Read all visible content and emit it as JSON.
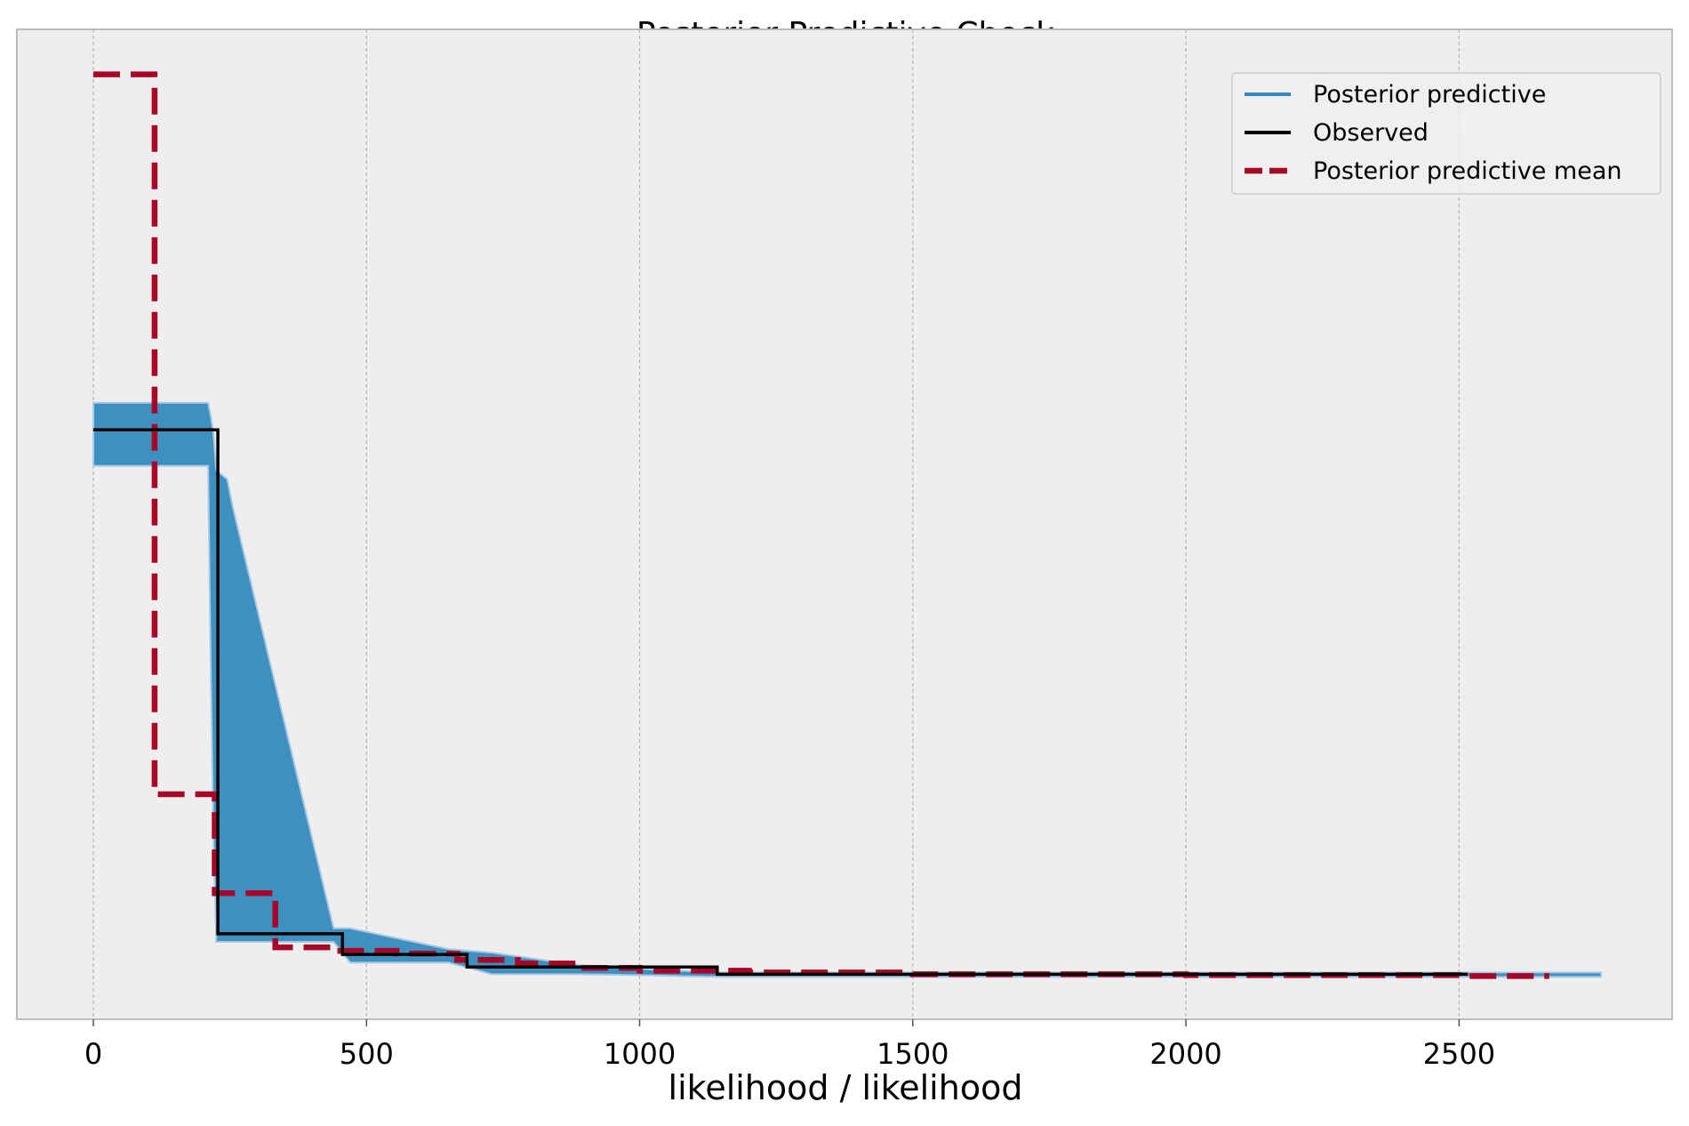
{
  "chart_data": {
    "type": "line",
    "title": "Posterior Predictive Check",
    "xlabel": "likelihood / likelihood",
    "ylabel": "",
    "xlim": [
      -140,
      2890
    ],
    "ylim": [
      -0.05,
      1.05
    ],
    "xticks": [
      0,
      500,
      1000,
      1500,
      2000,
      2500
    ],
    "yticks": [],
    "grid": {
      "x": true,
      "y": false
    },
    "legend_position": "top-right",
    "legend": [
      {
        "name": "Posterior predictive",
        "color": "#348abd",
        "style": "solid"
      },
      {
        "name": "Observed",
        "color": "#000000",
        "style": "solid"
      },
      {
        "name": "Posterior predictive mean",
        "color": "#a60628",
        "style": "dashed"
      }
    ],
    "colors": {
      "background": "#eeeeee",
      "posterior_predictive": "#348abd",
      "observed": "#000000",
      "posterior_predictive_mean": "#a60628",
      "grid": "#b2b2b2",
      "frame": "#bcbcbc"
    },
    "series": [
      {
        "name": "Posterior predictive",
        "kind": "band",
        "x": [
          0,
          210,
          215,
          220,
          225,
          245,
          255,
          440,
          470,
          650,
          730,
          890,
          1000,
          1150,
          1500,
          2000,
          2500,
          2760
        ],
        "lower": [
          0.565,
          0.565,
          0.33,
          0.15,
          0.036,
          0.036,
          0.036,
          0.036,
          0.013,
          0.013,
          0.0,
          0.0,
          -0.001,
          -0.003,
          -0.003,
          -0.003,
          -0.003,
          -0.003
        ],
        "upper": [
          0.635,
          0.635,
          0.62,
          0.6,
          0.56,
          0.55,
          0.52,
          0.051,
          0.051,
          0.028,
          0.024,
          0.01,
          0.006,
          0.002,
          0.002,
          0.002,
          0.002,
          0.002
        ]
      },
      {
        "name": "Observed",
        "kind": "step",
        "x": [
          0,
          228,
          456,
          684,
          1142,
          2516
        ],
        "y": [
          0.605,
          0.045,
          0.022,
          0.008,
          0.0,
          0.0
        ]
      },
      {
        "name": "Posterior predictive mean",
        "kind": "step",
        "x": [
          0,
          112,
          222,
          333,
          444,
          555,
          666,
          777,
          888,
          1000,
          1200,
          1500,
          2000,
          2500,
          2665
        ],
        "y": [
          1.0,
          0.2,
          0.09,
          0.03,
          0.026,
          0.023,
          0.016,
          0.012,
          0.007,
          0.004,
          0.002,
          0.0,
          -0.001,
          -0.002,
          -0.002
        ]
      }
    ]
  }
}
